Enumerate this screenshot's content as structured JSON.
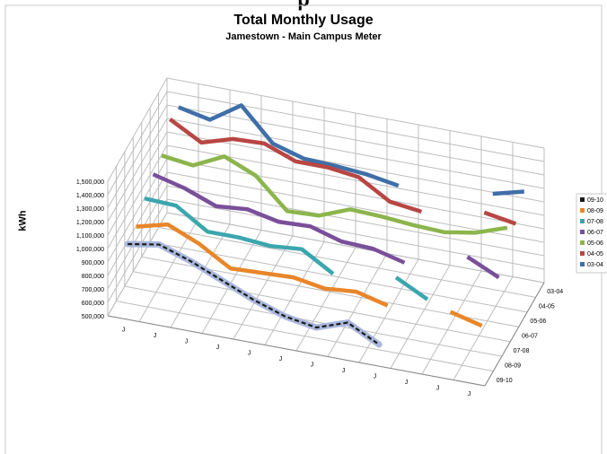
{
  "page": {
    "top_clip_text": "p"
  },
  "chart_data": {
    "type": "line",
    "title": "Total Monthly Usage",
    "subtitle": "Jamestown - Main Campus Meter",
    "xlabel": "",
    "ylabel": "kWh",
    "ylim": [
      500000,
      1500000
    ],
    "y_ticks": [
      "500,000",
      "600,000",
      "700,000",
      "800,000",
      "900,000",
      "1,000,000",
      "1,100,000",
      "1,200,000",
      "1,300,000",
      "1,400,000",
      "1,500,000"
    ],
    "categories": [
      "J",
      "J",
      "J",
      "J",
      "J",
      "J",
      "J",
      "J",
      "J",
      "J",
      "J",
      "J"
    ],
    "depth_ticks": [
      "03-04",
      "04-05",
      "05-06",
      "06-07",
      "07-08",
      "08-09",
      "09-10"
    ],
    "grid": true,
    "projection": "3d",
    "legend_position": "right",
    "series": [
      {
        "name": "09-10",
        "color": "#1a1a1a",
        "dashed": true,
        "values": [
          1000000,
          1040000,
          960000,
          860000,
          760000,
          680000,
          640000,
          720000,
          600000,
          null,
          null,
          null
        ]
      },
      {
        "name": "08-09",
        "color": "#e8862a",
        "values": [
          1020000,
          1080000,
          980000,
          840000,
          850000,
          860000,
          820000,
          840000,
          780000,
          null,
          820000,
          760000
        ]
      },
      {
        "name": "07-08",
        "color": "#3ba6ad",
        "values": [
          1120000,
          1110000,
          960000,
          960000,
          940000,
          960000,
          820000,
          null,
          880000,
          760000,
          null,
          820000
        ]
      },
      {
        "name": "06-07",
        "color": "#7a4f9a",
        "values": [
          1190000,
          1130000,
          1040000,
          1060000,
          1010000,
          1020000,
          950000,
          940000,
          880000,
          null,
          1010000,
          900000
        ]
      },
      {
        "name": "05-06",
        "color": "#8cb54c",
        "values": [
          1220000,
          1190000,
          1300000,
          1200000,
          980000,
          990000,
          1080000,
          1070000,
          1050000,
          1040000,
          1080000,
          1160000
        ]
      },
      {
        "name": "04-05",
        "color": "#b84642",
        "values": [
          1380000,
          1250000,
          1320000,
          1330000,
          1240000,
          1240000,
          1210000,
          1070000,
          1040000,
          null,
          1120000,
          1080000
        ]
      },
      {
        "name": "03-04",
        "color": "#3f6fa8",
        "values": [
          1360000,
          1310000,
          1460000,
          1220000,
          1150000,
          1140000,
          1120000,
          1080000,
          null,
          null,
          1150000,
          1210000
        ]
      }
    ]
  }
}
